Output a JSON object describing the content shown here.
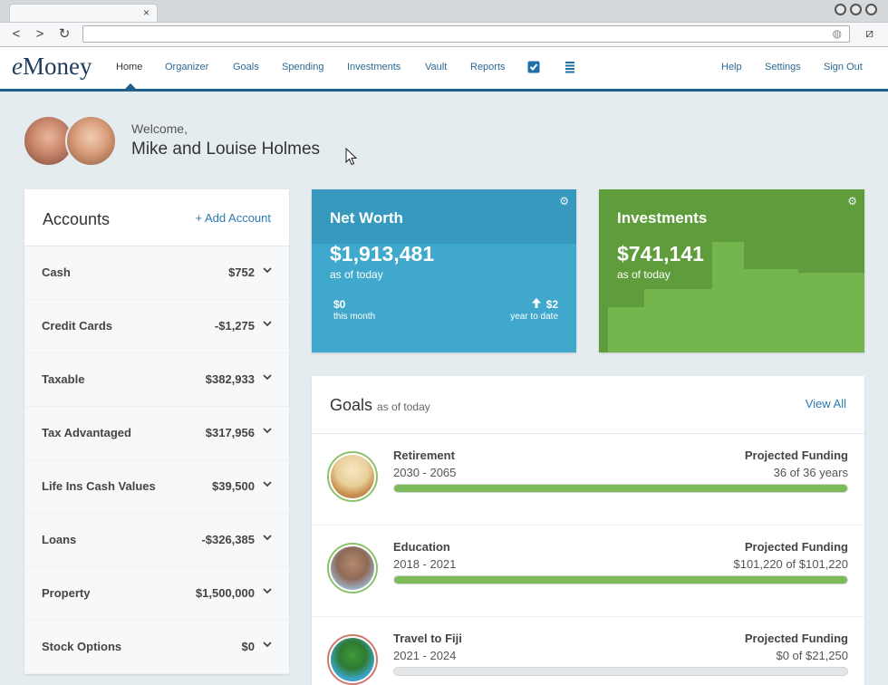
{
  "browser": {
    "tab_close": "×",
    "back": "<",
    "forward": ">",
    "reload": "↻",
    "globe": "◍",
    "ext": "⧄"
  },
  "nav": {
    "logo_e": "e",
    "logo_rest": "Money",
    "items": [
      "Home",
      "Organizer",
      "Goals",
      "Spending",
      "Investments",
      "Vault",
      "Reports"
    ],
    "right": [
      "Help",
      "Settings",
      "Sign Out"
    ],
    "accent": "#1f5f8b"
  },
  "welcome": {
    "greeting": "Welcome,",
    "name": "Mike and Louise Holmes"
  },
  "accounts": {
    "title": "Accounts",
    "add_label": "+ Add Account",
    "rows": [
      {
        "label": "Cash",
        "value": "$752"
      },
      {
        "label": "Credit Cards",
        "value": "-$1,275"
      },
      {
        "label": "Taxable",
        "value": "$382,933"
      },
      {
        "label": "Tax Advantaged",
        "value": "$317,956"
      },
      {
        "label": "Life Ins Cash Values",
        "value": "$39,500"
      },
      {
        "label": "Loans",
        "value": "-$326,385"
      },
      {
        "label": "Property",
        "value": "$1,500,000"
      },
      {
        "label": "Stock Options",
        "value": "$0"
      }
    ]
  },
  "net_worth": {
    "title": "Net Worth",
    "value": "$1,913,481",
    "as_of": "as of today",
    "month_value": "$0",
    "month_label": "this month",
    "ytd_value": "$2",
    "ytd_label": "year to date",
    "color": "#3fa8cc"
  },
  "investments": {
    "title": "Investments",
    "value": "$741,141",
    "as_of": "as of today",
    "color": "#75b54d"
  },
  "goals": {
    "title": "Goals",
    "subtitle": "as of today",
    "view_all": "View All",
    "items": [
      {
        "name": "Retirement",
        "years": "2030 - 2065",
        "funding_label": "Projected Funding",
        "funding_value": "36 of 36 years",
        "progress": 1.0
      },
      {
        "name": "Education",
        "years": "2018 - 2021",
        "funding_label": "Projected Funding",
        "funding_value": "$101,220 of $101,220",
        "progress": 1.0
      },
      {
        "name": "Travel to Fiji",
        "years": "2021 - 2024",
        "funding_label": "Projected Funding",
        "funding_value": "$0 of $21,250",
        "progress": 0.0
      }
    ]
  }
}
